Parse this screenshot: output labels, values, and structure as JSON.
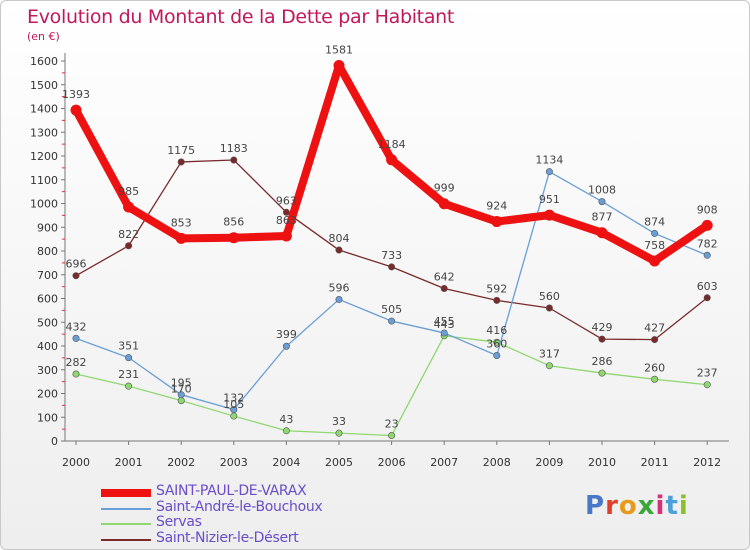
{
  "title": "Evolution du Montant de la Dette par Habitant",
  "subtitle": "(en €)",
  "logo": {
    "text": "Proxiti",
    "colors": [
      "#4a78c8",
      "#e0402a",
      "#e89a1c",
      "#3aa838",
      "#d4307c",
      "#4aa0d8",
      "#8ac030"
    ]
  },
  "chart_data": {
    "type": "line",
    "x": [
      "2000",
      "2001",
      "2002",
      "2003",
      "2004",
      "2005",
      "2006",
      "2007",
      "2008",
      "2009",
      "2010",
      "2011",
      "2012"
    ],
    "ylim": [
      0,
      1600
    ],
    "yticks": [
      0,
      100,
      200,
      300,
      400,
      500,
      600,
      700,
      800,
      900,
      1000,
      1100,
      1200,
      1300,
      1400,
      1500,
      1600
    ],
    "grid": false,
    "legend_position": "bottom-left",
    "series": [
      {
        "name": "SAINT-PAUL-DE-VARAX",
        "color": "#ee1111",
        "values": [
          1393,
          985,
          853,
          856,
          863,
          1581,
          1184,
          999,
          924,
          951,
          877,
          758,
          908
        ]
      },
      {
        "name": "Saint-André-le-Bouchoux",
        "color": "#6a9ed6",
        "values": [
          432,
          351,
          195,
          132,
          399,
          596,
          505,
          455,
          360,
          1134,
          1008,
          874,
          782
        ]
      },
      {
        "name": "Servas",
        "color": "#8fd870",
        "values": [
          282,
          231,
          170,
          105,
          43,
          33,
          23,
          443,
          416,
          317,
          286,
          260,
          237
        ]
      },
      {
        "name": "Saint-Nizier-le-Désert",
        "color": "#7a2a2a",
        "values": [
          696,
          822,
          1175,
          1183,
          963,
          804,
          733,
          642,
          592,
          560,
          429,
          427,
          603
        ]
      }
    ]
  }
}
